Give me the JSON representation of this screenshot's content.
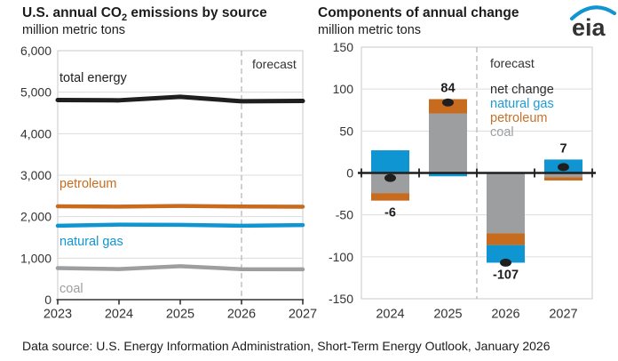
{
  "header": {
    "left": {
      "title_prefix": "U.S. annual CO",
      "title_sub": "2",
      "title_suffix": " emissions by source",
      "subtitle": "million metric tons"
    },
    "right": {
      "title": "Components of annual change",
      "subtitle": "million metric tons"
    }
  },
  "logo": {
    "text": "eia",
    "swoosh_color": "#1095d3",
    "text_color": "#333333"
  },
  "footer": {
    "text": "Data source: U.S. Energy Information Administration, Short-Term Energy Outlook, January 2026"
  },
  "colors": {
    "total_energy": "#1f1f1f",
    "natural_gas": "#1095d3",
    "petroleum": "#c76b1e",
    "coal": "#9c9ea0",
    "gridline": "#dcdcdc",
    "plot_border": "#c8c8c8",
    "forecast_dash": "#bbbbbb",
    "axis": "#333333"
  },
  "chart_data": [
    {
      "type": "line",
      "title": "U.S. annual CO2 emissions by source",
      "subtitle": "million metric tons",
      "x": [
        2023,
        2024,
        2025,
        2026,
        2027
      ],
      "x_labels": [
        "2023",
        "2024",
        "2025",
        "2026",
        "2027"
      ],
      "series": [
        {
          "name": "total energy",
          "color": "#1f1f1f",
          "width": 5,
          "values": [
            4810,
            4804,
            4888,
            4781,
            4788
          ]
        },
        {
          "name": "petroleum",
          "color": "#c76b1e",
          "width": 4.5,
          "values": [
            2250,
            2241,
            2258,
            2244,
            2240
          ]
        },
        {
          "name": "natural gas",
          "color": "#1095d3",
          "width": 4.5,
          "values": [
            1780,
            1807,
            1803,
            1782,
            1798
          ]
        },
        {
          "name": "coal",
          "color": "#9c9ea0",
          "width": 4.5,
          "values": [
            760,
            736,
            807,
            735,
            730
          ]
        }
      ],
      "ylim": [
        0,
        6000
      ],
      "ytick_step": 1000,
      "ytick_labels": [
        "0",
        "1,000",
        "2,000",
        "3,000",
        "4,000",
        "5,000",
        "6,000"
      ],
      "grid": true,
      "forecast_label": "forecast",
      "forecast_start_x": 2026,
      "legend_position": "labels-on-chart"
    },
    {
      "type": "stacked-bar",
      "title": "Components of annual change",
      "subtitle": "million metric tons",
      "categories": [
        "2024",
        "2025",
        "2026",
        "2027"
      ],
      "series": [
        {
          "name": "coal",
          "color": "#9c9ea0",
          "values": [
            -24,
            71,
            -72,
            -5
          ]
        },
        {
          "name": "petroleum",
          "color": "#c76b1e",
          "values": [
            -9,
            17,
            -14,
            -4
          ]
        },
        {
          "name": "natural gas",
          "color": "#1095d3",
          "values": [
            27,
            -4,
            -21,
            16
          ]
        }
      ],
      "net_change": {
        "name": "net change",
        "color": "#1f1f1f",
        "values": [
          -6,
          84,
          -107,
          7
        ]
      },
      "bar_value_labels": [
        "-6",
        "84",
        "-107",
        "7"
      ],
      "ylim": [
        -150,
        150
      ],
      "ytick_step": 50,
      "ytick_labels": [
        "150",
        "100",
        "50",
        "0",
        "-50",
        "-100",
        "-150"
      ],
      "grid": true,
      "forecast_label": "forecast",
      "forecast_after_category": "2025",
      "legend": {
        "items": [
          {
            "label": "net change",
            "color": "#2b2b2b"
          },
          {
            "label": "natural gas",
            "color": "#1b9cd8"
          },
          {
            "label": "petroleum",
            "color": "#c87128"
          },
          {
            "label": "coal",
            "color": "#9da0a3"
          }
        ]
      }
    }
  ]
}
